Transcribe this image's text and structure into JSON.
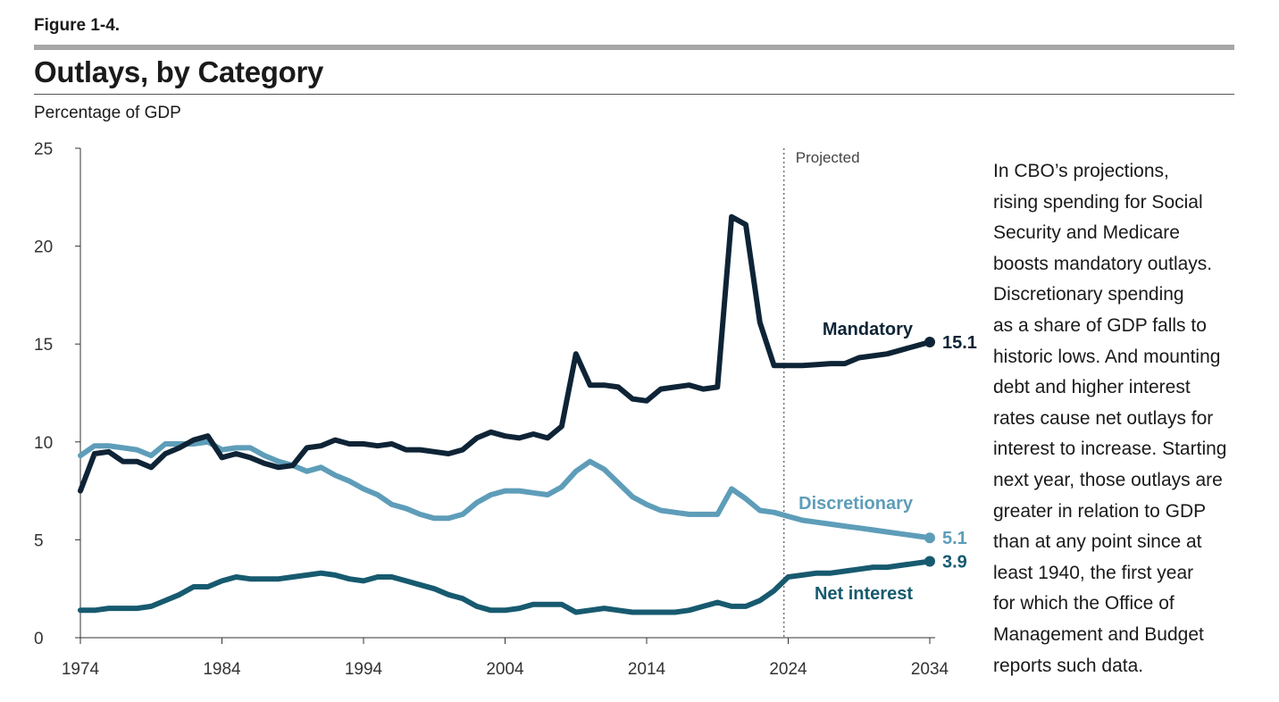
{
  "header": {
    "figure_label": "Figure 1-4.",
    "title": "Outlays, by Category",
    "unit_label": "Percentage of GDP"
  },
  "note_lines": [
    "In CBO’s projections,",
    "rising spending for Social",
    "Security and Medicare",
    "boosts mandatory outlays.",
    "Discretionary spending",
    "as a share of GDP falls to",
    "historic lows. And mounting",
    "debt and higher interest",
    "rates cause net outlays for",
    "interest to increase. Starting",
    "next year, those outlays are",
    "greater in relation to GDP",
    "than at any point since at",
    "least 1940, the first year",
    "for which the Office of",
    "Management and Budget",
    "reports such data."
  ],
  "chart_data": {
    "type": "line",
    "ylabel": "Percentage of GDP",
    "xlim": [
      1974,
      2034
    ],
    "ylim": [
      0,
      25
    ],
    "x_ticks": [
      "1974",
      "1984",
      "1994",
      "2004",
      "2014",
      "2024",
      "2034"
    ],
    "y_ticks": [
      "0",
      "5",
      "10",
      "15",
      "20",
      "25"
    ],
    "projected_start": 2023.7,
    "projected_label": "Projected",
    "grid": false,
    "x": [
      1974,
      1975,
      1976,
      1977,
      1978,
      1979,
      1980,
      1981,
      1982,
      1983,
      1984,
      1985,
      1986,
      1987,
      1988,
      1989,
      1990,
      1991,
      1992,
      1993,
      1994,
      1995,
      1996,
      1997,
      1998,
      1999,
      2000,
      2001,
      2002,
      2003,
      2004,
      2005,
      2006,
      2007,
      2008,
      2009,
      2010,
      2011,
      2012,
      2013,
      2014,
      2015,
      2016,
      2017,
      2018,
      2019,
      2020,
      2021,
      2022,
      2023,
      2024,
      2025,
      2026,
      2027,
      2028,
      2029,
      2030,
      2031,
      2032,
      2033,
      2034
    ],
    "series": [
      {
        "name": "Mandatory",
        "color": "#0e2436",
        "end_label": "15.1",
        "values": [
          7.5,
          9.4,
          9.5,
          9.0,
          9.0,
          8.7,
          9.4,
          9.7,
          10.1,
          10.3,
          9.2,
          9.4,
          9.2,
          8.9,
          8.7,
          8.8,
          9.7,
          9.8,
          10.1,
          9.9,
          9.9,
          9.8,
          9.9,
          9.6,
          9.6,
          9.5,
          9.4,
          9.6,
          10.2,
          10.5,
          10.3,
          10.2,
          10.4,
          10.2,
          10.8,
          14.5,
          12.9,
          12.9,
          12.8,
          12.2,
          12.1,
          12.7,
          12.8,
          12.9,
          12.7,
          12.8,
          21.5,
          21.1,
          16.1,
          13.9,
          13.9,
          13.9,
          13.95,
          14.0,
          14.0,
          14.3,
          14.4,
          14.5,
          14.7,
          14.9,
          15.1
        ]
      },
      {
        "name": "Discretionary",
        "color": "#5e9db9",
        "end_label": "5.1",
        "values": [
          9.3,
          9.8,
          9.8,
          9.7,
          9.6,
          9.3,
          9.9,
          9.9,
          9.9,
          10.0,
          9.6,
          9.7,
          9.7,
          9.3,
          9.0,
          8.8,
          8.5,
          8.7,
          8.3,
          8.0,
          7.6,
          7.3,
          6.8,
          6.6,
          6.3,
          6.1,
          6.1,
          6.3,
          6.9,
          7.3,
          7.5,
          7.5,
          7.4,
          7.3,
          7.7,
          8.5,
          9.0,
          8.6,
          7.9,
          7.2,
          6.8,
          6.5,
          6.4,
          6.3,
          6.3,
          6.3,
          7.6,
          7.1,
          6.5,
          6.4,
          6.2,
          6.0,
          5.9,
          5.8,
          5.7,
          5.6,
          5.5,
          5.4,
          5.3,
          5.2,
          5.1
        ]
      },
      {
        "name": "Net interest",
        "color": "#175a6f",
        "end_label": "3.9",
        "values": [
          1.4,
          1.4,
          1.5,
          1.5,
          1.5,
          1.6,
          1.9,
          2.2,
          2.6,
          2.6,
          2.9,
          3.1,
          3.0,
          3.0,
          3.0,
          3.1,
          3.2,
          3.3,
          3.2,
          3.0,
          2.9,
          3.1,
          3.1,
          2.9,
          2.7,
          2.5,
          2.2,
          2.0,
          1.6,
          1.4,
          1.4,
          1.5,
          1.7,
          1.7,
          1.7,
          1.3,
          1.4,
          1.5,
          1.4,
          1.3,
          1.3,
          1.3,
          1.3,
          1.4,
          1.6,
          1.8,
          1.6,
          1.6,
          1.9,
          2.4,
          3.1,
          3.2,
          3.3,
          3.3,
          3.4,
          3.5,
          3.6,
          3.6,
          3.7,
          3.8,
          3.9
        ]
      }
    ]
  }
}
